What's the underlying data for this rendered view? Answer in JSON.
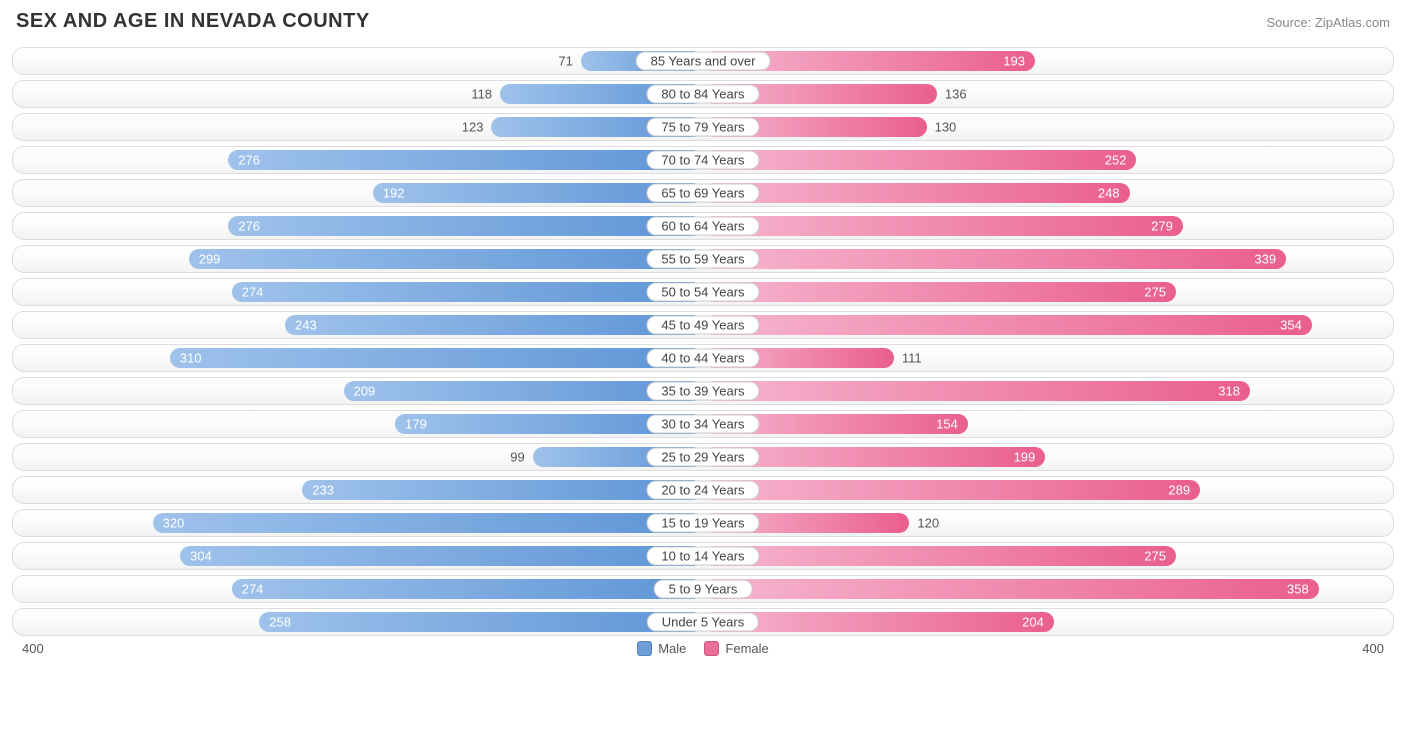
{
  "title": "SEX AND AGE IN NEVADA COUNTY",
  "source": "Source: ZipAtlas.com",
  "axis_max": 400,
  "axis_left_label": "400",
  "axis_right_label": "400",
  "legend": {
    "male": "Male",
    "female": "Female"
  },
  "colors": {
    "male_start": "#9fc2eb",
    "male_end": "#5d94d6",
    "female_start": "#f6b6cf",
    "female_end": "#ea5e8f",
    "swatch_male": "#6d9ed8",
    "swatch_female": "#ea6e9a",
    "row_border": "#dddddd",
    "text": "#555555",
    "title": "#333333",
    "source": "#888888",
    "value_inside": "#ffffff"
  },
  "inside_threshold": 150,
  "rows": [
    {
      "age": "85 Years and over",
      "male": 71,
      "female": 193
    },
    {
      "age": "80 to 84 Years",
      "male": 118,
      "female": 136
    },
    {
      "age": "75 to 79 Years",
      "male": 123,
      "female": 130
    },
    {
      "age": "70 to 74 Years",
      "male": 276,
      "female": 252
    },
    {
      "age": "65 to 69 Years",
      "male": 192,
      "female": 248
    },
    {
      "age": "60 to 64 Years",
      "male": 276,
      "female": 279
    },
    {
      "age": "55 to 59 Years",
      "male": 299,
      "female": 339
    },
    {
      "age": "50 to 54 Years",
      "male": 274,
      "female": 275
    },
    {
      "age": "45 to 49 Years",
      "male": 243,
      "female": 354
    },
    {
      "age": "40 to 44 Years",
      "male": 310,
      "female": 111
    },
    {
      "age": "35 to 39 Years",
      "male": 209,
      "female": 318
    },
    {
      "age": "30 to 34 Years",
      "male": 179,
      "female": 154
    },
    {
      "age": "25 to 29 Years",
      "male": 99,
      "female": 199
    },
    {
      "age": "20 to 24 Years",
      "male": 233,
      "female": 289
    },
    {
      "age": "15 to 19 Years",
      "male": 320,
      "female": 120
    },
    {
      "age": "10 to 14 Years",
      "male": 304,
      "female": 275
    },
    {
      "age": "5 to 9 Years",
      "male": 274,
      "female": 358
    },
    {
      "age": "Under 5 Years",
      "male": 258,
      "female": 204
    }
  ]
}
